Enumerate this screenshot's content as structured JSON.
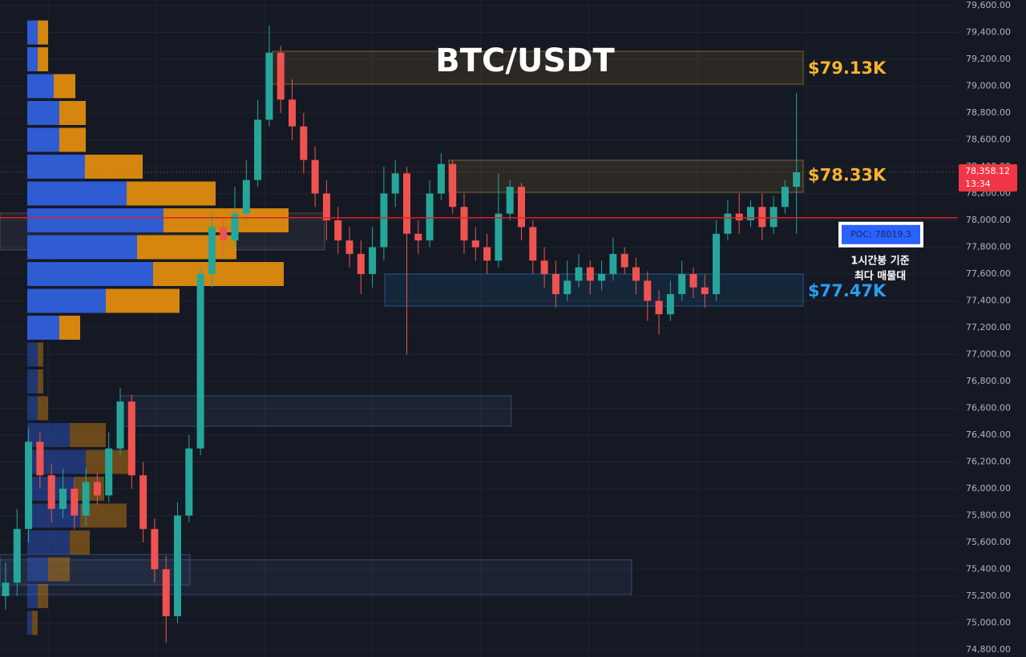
{
  "chart_data": {
    "type": "candlestick",
    "title": "BTC/USDT",
    "ylim": [
      74746,
      79642
    ],
    "yticks": [
      {
        "value": 74800,
        "label": "74,800.00"
      },
      {
        "value": 75000,
        "label": "75,000.00"
      },
      {
        "value": 75200,
        "label": "75,200.00"
      },
      {
        "value": 75400,
        "label": "75,400.00"
      },
      {
        "value": 75600,
        "label": "75,600.00"
      },
      {
        "value": 75800,
        "label": "75,800.00"
      },
      {
        "value": 76000,
        "label": "76,000.00"
      },
      {
        "value": 76200,
        "label": "76,200.00"
      },
      {
        "value": 76400,
        "label": "76,400.00"
      },
      {
        "value": 76600,
        "label": "76,600.00"
      },
      {
        "value": 76800,
        "label": "76,800.00"
      },
      {
        "value": 77000,
        "label": "77,000.00"
      },
      {
        "value": 77200,
        "label": "77,200.00"
      },
      {
        "value": 77400,
        "label": "77,400.00"
      },
      {
        "value": 77600,
        "label": "77,600.00"
      },
      {
        "value": 77800,
        "label": "77,800.00"
      },
      {
        "value": 78000,
        "label": "78,000.00"
      },
      {
        "value": 78200,
        "label": "78,200.00"
      },
      {
        "value": 78400,
        "label": "78,400.00"
      },
      {
        "value": 78600,
        "label": "78,600.00"
      },
      {
        "value": 78800,
        "label": "78,800.00"
      },
      {
        "value": 79000,
        "label": "79,000.00"
      },
      {
        "value": 79200,
        "label": "79,200.00"
      },
      {
        "value": 79400,
        "label": "79,400.00"
      },
      {
        "value": 79600,
        "label": "79,600.00"
      }
    ],
    "up_color": "#26a69a",
    "down_color": "#ef5350",
    "open": [
      75200,
      75300,
      75700,
      76350,
      76100,
      75850,
      76000,
      75800,
      76050,
      75950,
      76300,
      76650,
      76100,
      75700,
      75400,
      75050,
      75800,
      76300,
      77600,
      77950,
      77850,
      78050,
      78300,
      78750,
      79250,
      78900,
      78700,
      78450,
      78200,
      78000,
      77850,
      77750,
      77600,
      77800,
      78200,
      78350,
      77900,
      77850,
      78200,
      78420,
      78100,
      77850,
      77800,
      77700,
      78050,
      78250,
      77950,
      77700,
      77600,
      77450,
      77550,
      77650,
      77550,
      77600,
      77750,
      77650,
      77550,
      77400,
      77300,
      77450,
      77600,
      77500,
      77450,
      77900,
      78050,
      78000,
      78100,
      77950,
      78100,
      78250
    ],
    "high": [
      75450,
      75850,
      76450,
      76420,
      76180,
      76150,
      76080,
      76150,
      76120,
      76420,
      76750,
      76700,
      76200,
      75780,
      75500,
      75900,
      76400,
      77650,
      78050,
      78020,
      78250,
      78450,
      78900,
      79450,
      79300,
      79050,
      78800,
      78550,
      78300,
      78100,
      77950,
      77850,
      77950,
      78400,
      78450,
      78400,
      78000,
      78300,
      78500,
      78450,
      78200,
      77950,
      77900,
      78350,
      78300,
      78280,
      78000,
      77800,
      77700,
      77700,
      77750,
      77700,
      77700,
      77870,
      77800,
      77720,
      77620,
      77480,
      77550,
      77700,
      77650,
      77600,
      78000,
      78150,
      78200,
      78150,
      78200,
      78180,
      78300,
      78950
    ],
    "low": [
      75100,
      75200,
      75600,
      76000,
      75750,
      75780,
      75700,
      75720,
      75880,
      75900,
      76250,
      76000,
      75600,
      75300,
      74850,
      75000,
      75750,
      76250,
      77500,
      77750,
      77800,
      78000,
      78250,
      78700,
      78800,
      78600,
      78350,
      78100,
      77850,
      77750,
      77650,
      77450,
      77500,
      77700,
      78100,
      77000,
      77750,
      77800,
      78150,
      78050,
      77750,
      77700,
      77600,
      77650,
      78000,
      77850,
      77600,
      77500,
      77350,
      77400,
      77500,
      77450,
      77480,
      77550,
      77600,
      77450,
      77250,
      77150,
      77250,
      77400,
      77420,
      77350,
      77400,
      77850,
      77900,
      77950,
      77850,
      77900,
      78050,
      77900
    ],
    "close": [
      75300,
      75700,
      76350,
      76100,
      75850,
      76000,
      75800,
      76050,
      75950,
      76300,
      76650,
      76100,
      75700,
      75400,
      75050,
      75800,
      76300,
      77600,
      77950,
      77850,
      78050,
      78300,
      78750,
      79250,
      78900,
      78700,
      78450,
      78200,
      78000,
      77850,
      77750,
      77600,
      77800,
      78200,
      78350,
      77900,
      77850,
      78200,
      78420,
      78100,
      77850,
      77800,
      77700,
      78050,
      78250,
      77950,
      77700,
      77600,
      77450,
      77550,
      77650,
      77550,
      77600,
      77750,
      77650,
      77550,
      77400,
      77300,
      77450,
      77600,
      77500,
      77450,
      77900,
      78050,
      78000,
      78100,
      77950,
      78100,
      78250,
      78358.12
    ],
    "volume_profile": {
      "price": [
        79400,
        79200,
        79000,
        78800,
        78600,
        78400,
        78200,
        78000,
        77800,
        77600,
        77400,
        77200,
        77000,
        76800,
        76600,
        76400,
        76200,
        76000,
        75800,
        75600,
        75400,
        75200,
        75000
      ],
      "buy": [
        13,
        13,
        33,
        40,
        40,
        72,
        124,
        170,
        137,
        157,
        98,
        40,
        13,
        13,
        13,
        53,
        73,
        60,
        66,
        53,
        26,
        13,
        6
      ],
      "sell": [
        13,
        13,
        27,
        33,
        33,
        72,
        111,
        156,
        124,
        163,
        92,
        26,
        7,
        7,
        13,
        45,
        58,
        36,
        58,
        25,
        27,
        13,
        7
      ],
      "buy_color": "#2f5bd3",
      "sell_color": "#d4860f"
    },
    "zones": [
      {
        "value": 79130,
        "label": "$79.13K",
        "low": 79015,
        "high": 79260,
        "color": "#f5b52e"
      },
      {
        "value": 78330,
        "label": "$78.33K",
        "low": 78209,
        "high": 78448,
        "color": "#f5b52e"
      },
      {
        "value": 77470,
        "label": "$77.47K",
        "low": 77361,
        "high": 77600,
        "color": "#2a9df4"
      },
      {
        "low": 77780,
        "high": 78054,
        "color": "#8a8f99"
      },
      {
        "low": 76466,
        "high": 76693,
        "color": "#5a7fb8"
      },
      {
        "low": 75283,
        "high": 75510,
        "color": "#5a7fb8"
      },
      {
        "low": 75212,
        "high": 75470,
        "color": "#5a7fb8"
      }
    ],
    "poc": {
      "value": 78019.3,
      "label": "POC: 78019.3"
    },
    "note": [
      "1시간봉 기준",
      "최다 매물대"
    ],
    "last_price": {
      "value": 78358.12,
      "label": "78,358.12"
    },
    "countdown": "13:34"
  }
}
